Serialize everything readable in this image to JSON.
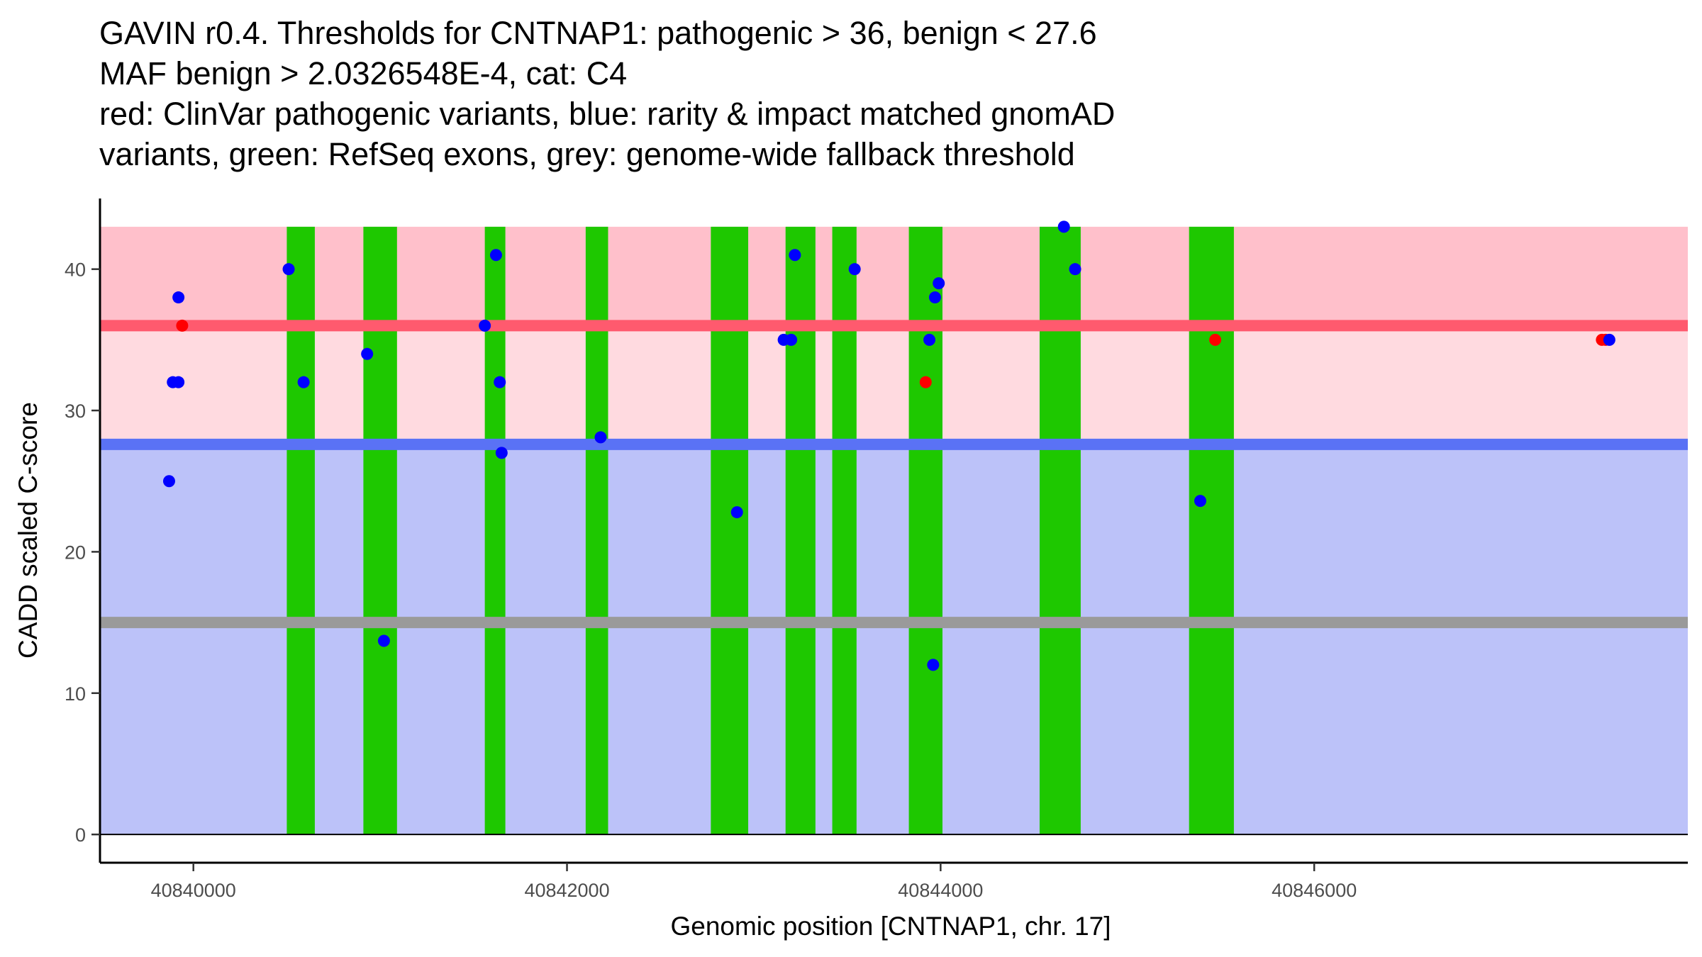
{
  "chart_data": {
    "type": "scatter",
    "title_lines": [
      "GAVIN r0.4. Thresholds for CNTNAP1: pathogenic > 36, benign < 27.6",
      "MAF benign > 2.0326548E-4, cat: C4",
      "red: ClinVar pathogenic variants, blue: rarity & impact matched gnomAD",
      "variants, green: RefSeq exons, grey: genome-wide fallback threshold"
    ],
    "xlabel": "Genomic position [CNTNAP1, chr. 17]",
    "ylabel": "CADD scaled C-score",
    "xlim": [
      40839500,
      40848000
    ],
    "ylim": [
      -2,
      45
    ],
    "x_ticks": [
      40840000,
      40842000,
      40844000,
      40846000
    ],
    "x_tick_labels": [
      "40840000",
      "40842000",
      "40844000",
      "40846000"
    ],
    "y_ticks": [
      0,
      10,
      20,
      30,
      40
    ],
    "y_tick_labels": [
      "0",
      "10",
      "20",
      "30",
      "40"
    ],
    "pathogenic_threshold": 36,
    "benign_threshold": 27.6,
    "fallback_threshold": 15,
    "band_top": 43,
    "colors": {
      "high_band": "#ffc0cb",
      "mid_band": "#ffdae0",
      "low_band": "#bcc2f9",
      "pathogenic_line": "#ff5a6e",
      "benign_line": "#5a72f5",
      "fallback_line": "#9a9a9a",
      "exon": "#1ec800",
      "clinvar": "#ff0000",
      "gnomad": "#0000ff",
      "axis": "#000000"
    },
    "exons": [
      {
        "start": 40840500,
        "end": 40840650
      },
      {
        "start": 40840910,
        "end": 40841090
      },
      {
        "start": 40841560,
        "end": 40841670
      },
      {
        "start": 40842100,
        "end": 40842220
      },
      {
        "start": 40842770,
        "end": 40842970
      },
      {
        "start": 40843170,
        "end": 40843330
      },
      {
        "start": 40843420,
        "end": 40843550
      },
      {
        "start": 40843830,
        "end": 40844010
      },
      {
        "start": 40844530,
        "end": 40844750
      },
      {
        "start": 40845330,
        "end": 40845570
      }
    ],
    "series": [
      {
        "name": "ClinVar pathogenic",
        "color_key": "clinvar",
        "points": [
          {
            "x": 40839940,
            "y": 36
          },
          {
            "x": 40843920,
            "y": 32
          },
          {
            "x": 40845470,
            "y": 35
          },
          {
            "x": 40847540,
            "y": 35
          },
          {
            "x": 40847560,
            "y": 35
          }
        ]
      },
      {
        "name": "gnomAD matched",
        "color_key": "gnomad",
        "points": [
          {
            "x": 40839870,
            "y": 25
          },
          {
            "x": 40839890,
            "y": 32
          },
          {
            "x": 40839920,
            "y": 32
          },
          {
            "x": 40839920,
            "y": 38
          },
          {
            "x": 40840510,
            "y": 40
          },
          {
            "x": 40840590,
            "y": 32
          },
          {
            "x": 40840930,
            "y": 34
          },
          {
            "x": 40841020,
            "y": 13.7
          },
          {
            "x": 40841560,
            "y": 36
          },
          {
            "x": 40841620,
            "y": 41
          },
          {
            "x": 40841640,
            "y": 32
          },
          {
            "x": 40841650,
            "y": 27
          },
          {
            "x": 40842180,
            "y": 28.1
          },
          {
            "x": 40842910,
            "y": 22.8
          },
          {
            "x": 40843160,
            "y": 35
          },
          {
            "x": 40843200,
            "y": 35
          },
          {
            "x": 40843220,
            "y": 41
          },
          {
            "x": 40843540,
            "y": 40
          },
          {
            "x": 40843940,
            "y": 35
          },
          {
            "x": 40843960,
            "y": 12
          },
          {
            "x": 40843970,
            "y": 38
          },
          {
            "x": 40843990,
            "y": 39
          },
          {
            "x": 40844660,
            "y": 43
          },
          {
            "x": 40844720,
            "y": 40
          },
          {
            "x": 40845390,
            "y": 23.6
          },
          {
            "x": 40847580,
            "y": 35
          }
        ]
      }
    ]
  }
}
